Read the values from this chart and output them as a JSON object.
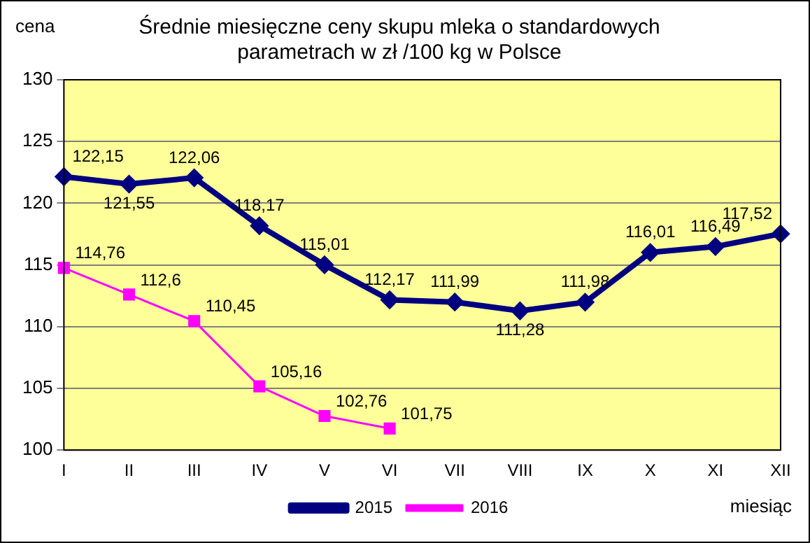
{
  "chart_data": {
    "type": "line",
    "title": "Średnie miesięczne ceny skupu mleka o standardowych\nparametrach w zł /100 kg w Polsce",
    "xlabel": "miesiąc",
    "ylabel": "cena",
    "categories": [
      "I",
      "II",
      "III",
      "IV",
      "V",
      "VI",
      "VII",
      "VIII",
      "IX",
      "X",
      "XI",
      "XII"
    ],
    "series": [
      {
        "name": "2015",
        "color": "#000080",
        "marker": "diamond",
        "values": [
          122.15,
          121.55,
          122.06,
          118.17,
          115.01,
          112.17,
          111.99,
          111.28,
          111.98,
          116.01,
          116.49,
          117.52
        ],
        "value_labels": [
          "122,15",
          "121,55",
          "122,06",
          "118,17",
          "115,01",
          "112,17",
          "111,99",
          "111,28",
          "111,98",
          "116,01",
          "116,49",
          "117,52"
        ]
      },
      {
        "name": "2016",
        "color": "#ff00ff",
        "marker": "square",
        "values": [
          114.76,
          112.6,
          110.45,
          105.16,
          102.76,
          101.75,
          null,
          null,
          null,
          null,
          null,
          null
        ],
        "value_labels": [
          "114,76",
          "112,6",
          "110,45",
          "105,16",
          "102,76",
          "101,75",
          null,
          null,
          null,
          null,
          null,
          null
        ]
      }
    ],
    "ylim": [
      100,
      130
    ],
    "yticks": [
      100,
      105,
      110,
      115,
      120,
      125,
      130
    ],
    "grid": "y",
    "legend": "bottom",
    "line_style": "solid"
  }
}
